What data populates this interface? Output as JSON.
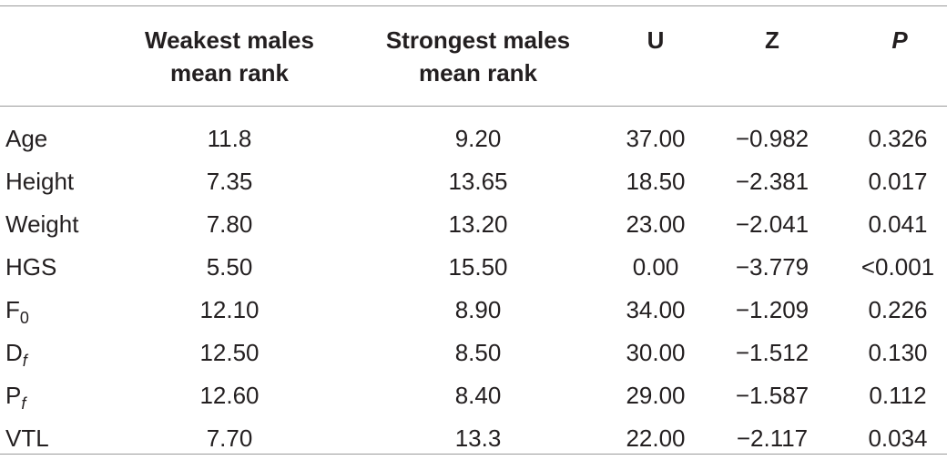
{
  "headers": {
    "col1_line1": "Weakest males",
    "col1_line2": "mean rank",
    "col2_line1": "Strongest males",
    "col2_line2": "mean rank",
    "col3": "U",
    "col4": "Z",
    "col5": "P"
  },
  "rows": [
    {
      "label": "Age",
      "label_sub": "",
      "weakest": "11.8",
      "strongest": "9.20",
      "u": "37.00",
      "z": "−0.982",
      "p": "0.326"
    },
    {
      "label": "Height",
      "label_sub": "",
      "weakest": "7.35",
      "strongest": "13.65",
      "u": "18.50",
      "z": "−2.381",
      "p": "0.017"
    },
    {
      "label": "Weight",
      "label_sub": "",
      "weakest": "7.80",
      "strongest": "13.20",
      "u": "23.00",
      "z": "−2.041",
      "p": "0.041"
    },
    {
      "label": "HGS",
      "label_sub": "",
      "weakest": "5.50",
      "strongest": "15.50",
      "u": "0.00",
      "z": "−3.779",
      "p": "<0.001"
    },
    {
      "label": "F",
      "label_sub": "0",
      "weakest": "12.10",
      "strongest": "8.90",
      "u": "34.00",
      "z": "−1.209",
      "p": "0.226"
    },
    {
      "label": "D",
      "label_sub": "f",
      "weakest": "12.50",
      "strongest": "8.50",
      "u": "30.00",
      "z": "−1.512",
      "p": "0.130"
    },
    {
      "label": "P",
      "label_sub": "f",
      "weakest": "12.60",
      "strongest": "8.40",
      "u": "29.00",
      "z": "−1.587",
      "p": "0.112"
    },
    {
      "label": "VTL",
      "label_sub": "",
      "weakest": "7.70",
      "strongest": "13.3",
      "u": "22.00",
      "z": "−2.117",
      "p": "0.034"
    }
  ]
}
